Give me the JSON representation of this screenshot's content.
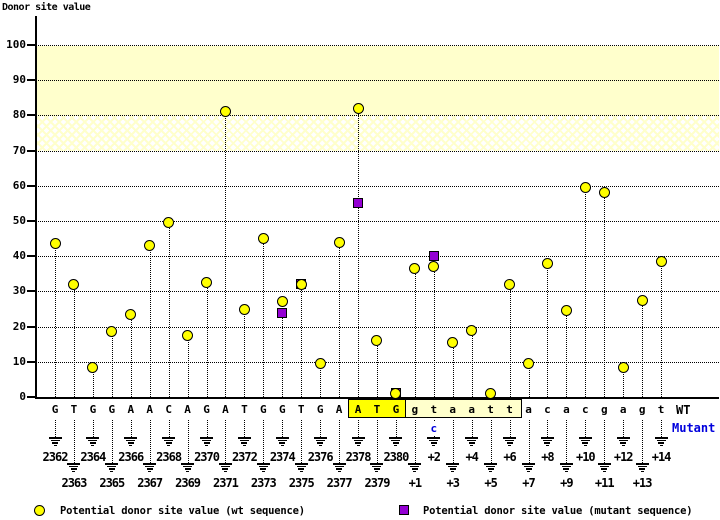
{
  "title": "Donor site value",
  "colors": {
    "wt_marker": "#ffff00",
    "mutant_marker": "#9400d3",
    "mutant_text": "#0000dd",
    "band_solid": "#ffffcc",
    "exon_box_bg": "#ffff00",
    "intron_box_bg": "#ffffcc"
  },
  "x_axis": {
    "wt_label": "WT",
    "mutant_label": "Mutant"
  },
  "legend": {
    "wt": "Potential donor site value (wt sequence)",
    "mutant": "Potential donor site value (mutant sequence)"
  },
  "chart_data": {
    "type": "scatter",
    "title": "Donor site value",
    "ylabel": "Donor site value",
    "ylim": [
      0,
      110
    ],
    "yticks": [
      0,
      10,
      20,
      30,
      40,
      50,
      60,
      70,
      80,
      90,
      100
    ],
    "grid": "dotted-horizontal",
    "threshold_bands": [
      {
        "from": 80,
        "to": 100,
        "style": "solid"
      },
      {
        "from": 70,
        "to": 80,
        "style": "hatched"
      }
    ],
    "legend_position": "bottom",
    "series": [
      {
        "name": "Potential donor site value (wt sequence)",
        "marker": "circle",
        "color": "#ffff00"
      },
      {
        "name": "Potential donor site value (mutant sequence)",
        "marker": "square",
        "color": "#9400d3"
      }
    ],
    "columns": [
      {
        "pos": "2362",
        "base": "G",
        "wt": 43.5
      },
      {
        "pos": "2363",
        "base": "T",
        "wt": 32
      },
      {
        "pos": "2364",
        "base": "G",
        "wt": 8.5
      },
      {
        "pos": "2365",
        "base": "G",
        "wt": 18.5
      },
      {
        "pos": "2366",
        "base": "A",
        "wt": 23.5
      },
      {
        "pos": "2367",
        "base": "A",
        "wt": 43
      },
      {
        "pos": "2368",
        "base": "C",
        "wt": 49.5
      },
      {
        "pos": "2369",
        "base": "A",
        "wt": 17.5
      },
      {
        "pos": "2370",
        "base": "G",
        "wt": 32.5
      },
      {
        "pos": "2371",
        "base": "A",
        "wt": 81
      },
      {
        "pos": "2372",
        "base": "T",
        "wt": 25
      },
      {
        "pos": "2373",
        "base": "G",
        "wt": 45
      },
      {
        "pos": "2374",
        "base": "G",
        "wt": 27,
        "mut": 24
      },
      {
        "pos": "2375",
        "base": "T",
        "wt": 32,
        "mut": 32
      },
      {
        "pos": "2376",
        "base": "G",
        "wt": 9.5
      },
      {
        "pos": "2377",
        "base": "A",
        "wt": 44
      },
      {
        "pos": "2378",
        "base": "A",
        "wt": 82,
        "mut": 55,
        "box": "exon"
      },
      {
        "pos": "2379",
        "base": "T",
        "wt": 16,
        "box": "exon"
      },
      {
        "pos": "2380",
        "base": "G",
        "wt": 1,
        "mut": 1,
        "box": "exon"
      },
      {
        "pos": "+1",
        "base": "g",
        "wt": 36.5,
        "box": "intron"
      },
      {
        "pos": "+2",
        "base": "t",
        "wt": 37,
        "mut": 40,
        "mut_base": "c",
        "box": "intron"
      },
      {
        "pos": "+3",
        "base": "a",
        "wt": 15.5,
        "box": "intron"
      },
      {
        "pos": "+4",
        "base": "a",
        "wt": 19,
        "box": "intron"
      },
      {
        "pos": "+5",
        "base": "t",
        "wt": 1,
        "box": "intron"
      },
      {
        "pos": "+6",
        "base": "t",
        "wt": 32,
        "box": "intron"
      },
      {
        "pos": "+7",
        "base": "a",
        "wt": 9.5
      },
      {
        "pos": "+8",
        "base": "c",
        "wt": 38
      },
      {
        "pos": "+9",
        "base": "a",
        "wt": 24.5
      },
      {
        "pos": "+10",
        "base": "c",
        "wt": 59.5
      },
      {
        "pos": "+11",
        "base": "g",
        "wt": 58
      },
      {
        "pos": "+12",
        "base": "a",
        "wt": 8.5
      },
      {
        "pos": "+13",
        "base": "g",
        "wt": 27.5
      },
      {
        "pos": "+14",
        "base": "t",
        "wt": 38.5
      }
    ]
  }
}
